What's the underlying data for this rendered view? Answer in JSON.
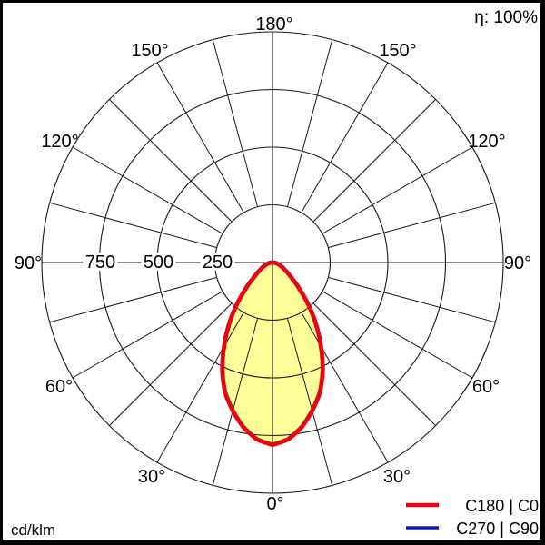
{
  "overlay": {
    "efficiency_label": "η: 100%",
    "unit_label": "cd/klm"
  },
  "chart_data": {
    "type": "polar",
    "subtype": "luminous-intensity-distribution",
    "title": "",
    "r_axis": {
      "min": 0,
      "max": 1000,
      "tick_step": 250,
      "unit": "cd/klm"
    },
    "radial_ticks": [
      250,
      500,
      750,
      1000
    ],
    "radial_tick_labels": [
      "250",
      "500",
      "750"
    ],
    "angle_labels": [
      "0°",
      "30°",
      "60°",
      "90°",
      "120°",
      "150°",
      "180°"
    ],
    "angle_label_step_deg": 30,
    "spoke_step_deg": 15,
    "grid_color": "#1a1a1a",
    "fill_color": "#ffff99",
    "legend_position": "bottom-right",
    "series": [
      {
        "name": "C180 | C0",
        "color": "#e30613",
        "gamma_deg": [
          0,
          5,
          10,
          15,
          20,
          25,
          30,
          35,
          40,
          45,
          50,
          55,
          60,
          65,
          70,
          75,
          80,
          85,
          90
        ],
        "values_cd_klm": [
          790,
          770,
          725,
          665,
          600,
          515,
          420,
          330,
          245,
          170,
          115,
          82,
          60,
          45,
          33,
          24,
          16,
          9,
          3
        ]
      },
      {
        "name": "C270 | C90",
        "color": "#1212cc",
        "gamma_deg": [
          0,
          5,
          10,
          15,
          20,
          25,
          30,
          35,
          40,
          45,
          50,
          55,
          60,
          65,
          70,
          75,
          80,
          85,
          90
        ],
        "values_cd_klm": [
          790,
          770,
          725,
          665,
          600,
          515,
          420,
          330,
          245,
          170,
          115,
          82,
          60,
          45,
          33,
          24,
          16,
          9,
          3
        ]
      }
    ]
  }
}
